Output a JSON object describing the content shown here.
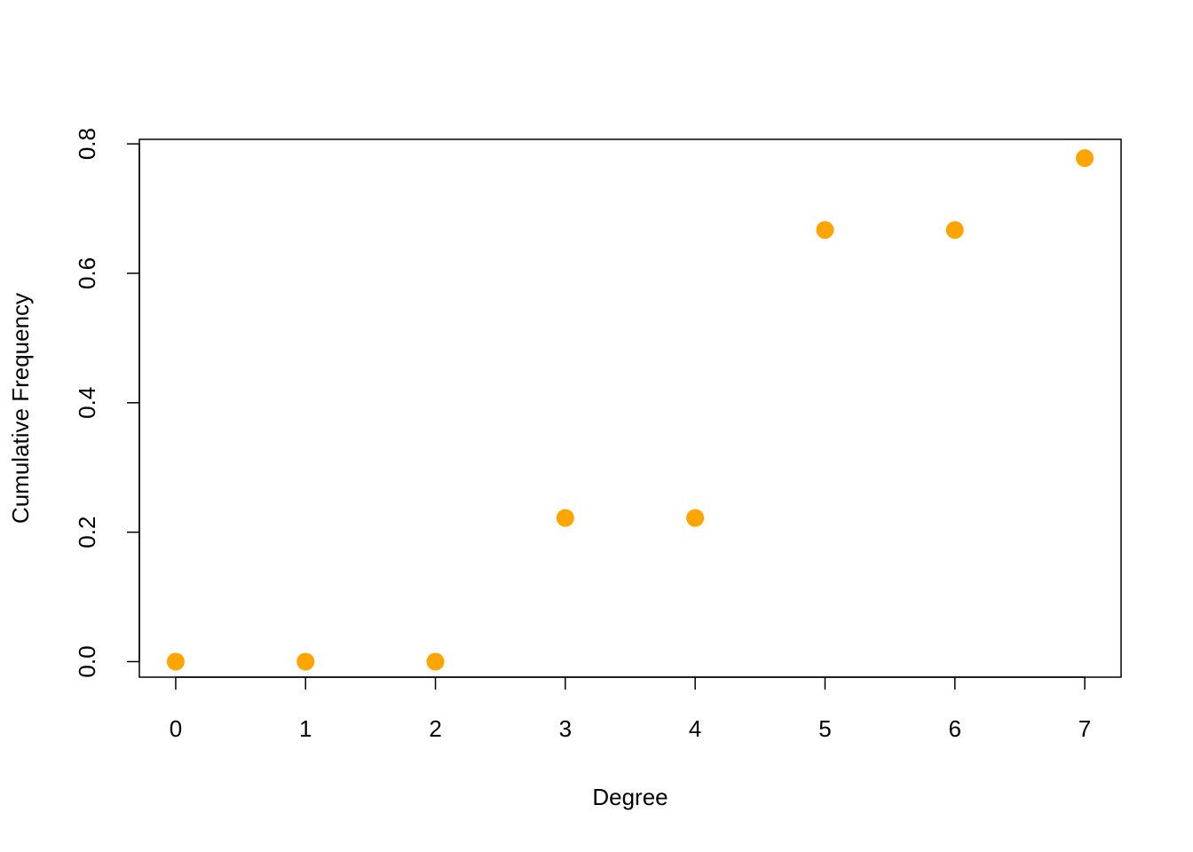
{
  "chart_data": {
    "type": "scatter",
    "x_label": "Degree",
    "y_label": "Cumulative Frequency",
    "x": [
      0,
      1,
      2,
      3,
      4,
      5,
      6,
      7
    ],
    "values": [
      0,
      0,
      0,
      0.222,
      0.222,
      0.667,
      0.667,
      0.778
    ],
    "color": "#ffa500",
    "xlim": [
      -0.28,
      7.28
    ],
    "ylim": [
      -0.024,
      0.807
    ],
    "xticks": [
      0,
      1,
      2,
      3,
      4,
      5,
      6,
      7
    ],
    "yticks": [
      {
        "value": 0,
        "label": "0.0"
      },
      0.2,
      0.4,
      0.6,
      0.8
    ]
  }
}
